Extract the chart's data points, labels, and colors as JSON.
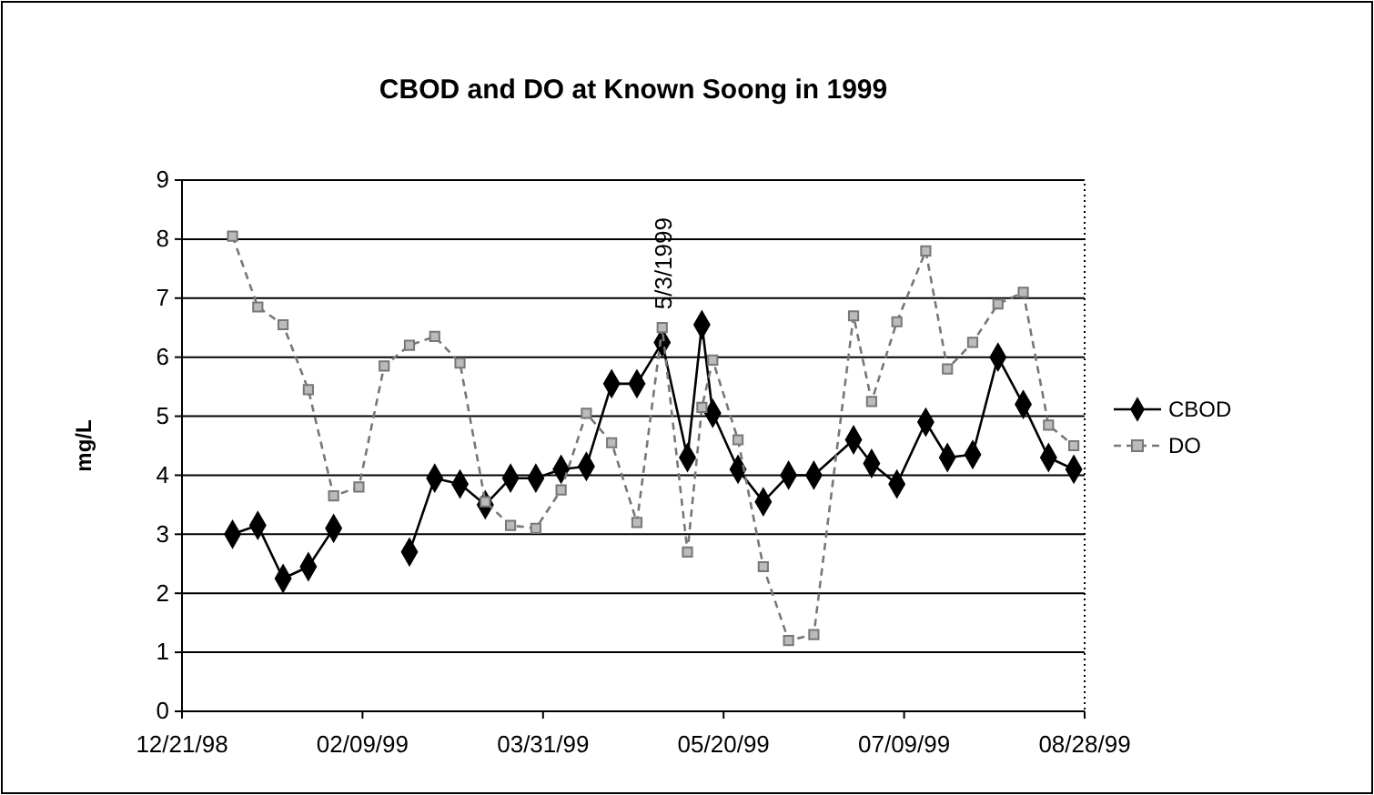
{
  "chart_data": {
    "type": "line",
    "title": "CBOD and DO at Known Soong in 1999",
    "ylabel": "mg/L",
    "x": [
      "1999-01-04",
      "1999-01-11",
      "1999-01-18",
      "1999-01-25",
      "1999-02-01",
      "1999-02-08",
      "1999-02-15",
      "1999-02-22",
      "1999-03-01",
      "1999-03-08",
      "1999-03-15",
      "1999-03-22",
      "1999-03-29",
      "1999-04-05",
      "1999-04-12",
      "1999-04-19",
      "1999-04-26",
      "1999-05-03",
      "1999-05-10",
      "1999-05-14",
      "1999-05-17",
      "1999-05-24",
      "1999-05-31",
      "1999-06-07",
      "1999-06-14",
      "1999-06-25",
      "1999-06-30",
      "1999-07-07",
      "1999-07-15",
      "1999-07-21",
      "1999-07-28",
      "1999-08-04",
      "1999-08-11",
      "1999-08-18",
      "1999-08-25"
    ],
    "series": [
      {
        "name": "CBOD",
        "color": "#000000",
        "marker": "diamond",
        "line_style": "solid",
        "values": [
          3.0,
          3.15,
          2.25,
          2.45,
          3.1,
          null,
          null,
          2.7,
          3.95,
          3.85,
          3.5,
          3.95,
          3.95,
          4.1,
          4.15,
          5.55,
          5.55,
          6.25,
          4.3,
          6.55,
          5.05,
          4.1,
          3.55,
          4.0,
          4.0,
          4.6,
          4.2,
          3.85,
          4.9,
          4.3,
          4.35,
          6.0,
          5.2,
          4.3,
          4.1
        ]
      },
      {
        "name": "DO",
        "color": "#777777",
        "marker": "square",
        "line_style": "dashed",
        "values": [
          8.05,
          6.85,
          6.55,
          5.45,
          3.65,
          3.8,
          5.85,
          6.2,
          6.35,
          5.9,
          3.55,
          3.15,
          3.1,
          3.75,
          5.05,
          4.55,
          3.2,
          6.5,
          2.7,
          5.15,
          5.95,
          4.6,
          2.45,
          1.2,
          1.3,
          6.7,
          5.25,
          6.6,
          7.8,
          5.8,
          6.25,
          6.9,
          7.1,
          4.85,
          4.5
        ]
      }
    ],
    "xlim": [
      "1998-12-21",
      "1999-08-28"
    ],
    "xticks": [
      {
        "value": "1998-12-21",
        "label": "12/21/98"
      },
      {
        "value": "1999-02-09",
        "label": "02/09/99"
      },
      {
        "value": "1999-03-31",
        "label": "03/31/99"
      },
      {
        "value": "1999-05-20",
        "label": "05/20/99"
      },
      {
        "value": "1999-07-09",
        "label": "07/09/99"
      },
      {
        "value": "1999-08-28",
        "label": "08/28/99"
      }
    ],
    "ylim": [
      0,
      9
    ],
    "yticks": [
      0,
      1,
      2,
      3,
      4,
      5,
      6,
      7,
      8,
      9
    ],
    "grid": "y",
    "legend": "right",
    "annotations": [
      {
        "text": "5/3/1999",
        "x": "1999-05-03",
        "y": 6.5
      }
    ]
  }
}
